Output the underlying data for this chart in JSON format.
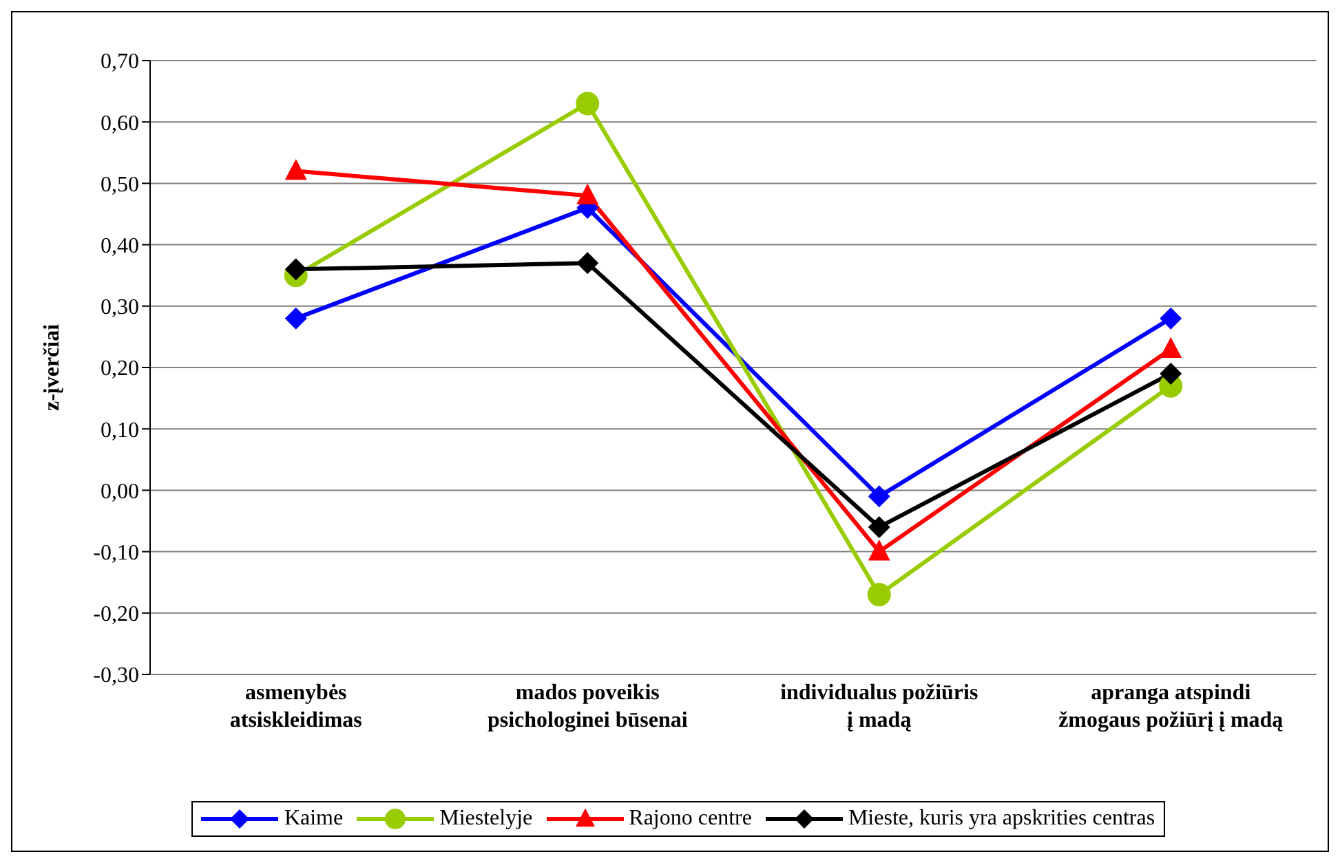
{
  "chart_data": {
    "type": "line",
    "ylabel": "z-įverčiai",
    "categories": [
      "asmenybės atsiskleidimas",
      "mados poveikis psichologinei būsenai",
      "individualus požiūris į madą",
      "apranga atspindi žmogaus požiūrį į madą"
    ],
    "series": [
      {
        "name": "Kaime",
        "color": "#0000ff",
        "marker": "diamond",
        "values": [
          0.28,
          0.46,
          -0.01,
          0.28
        ]
      },
      {
        "name": "Miestelyje",
        "color": "#99cc00",
        "marker": "circle",
        "values": [
          0.35,
          0.63,
          -0.17,
          0.17
        ]
      },
      {
        "name": "Rajono centre",
        "color": "#ff0000",
        "marker": "triangle",
        "values": [
          0.52,
          0.48,
          -0.1,
          0.23
        ]
      },
      {
        "name": "Mieste, kuris yra apskrities centras",
        "color": "#000000",
        "marker": "diamond",
        "values": [
          0.36,
          0.37,
          -0.06,
          0.19
        ]
      }
    ],
    "ylim": [
      -0.3,
      0.7
    ],
    "yticks": [
      {
        "value": -0.3,
        "label": "-0,30"
      },
      {
        "value": -0.2,
        "label": "-0,20"
      },
      {
        "value": -0.1,
        "label": "-0,10"
      },
      {
        "value": 0,
        "label": "0,00"
      },
      {
        "value": 0.1,
        "label": "0,10"
      },
      {
        "value": 0.2,
        "label": "0,20"
      },
      {
        "value": 0.3,
        "label": "0,30"
      },
      {
        "value": 0.4,
        "label": "0,40"
      },
      {
        "value": 0.5,
        "label": "0,50"
      },
      {
        "value": 0.6,
        "label": "0,60"
      },
      {
        "value": 0.7,
        "label": "0,70"
      }
    ],
    "grid": "y",
    "legend": "bottom",
    "line_style": "solid"
  }
}
